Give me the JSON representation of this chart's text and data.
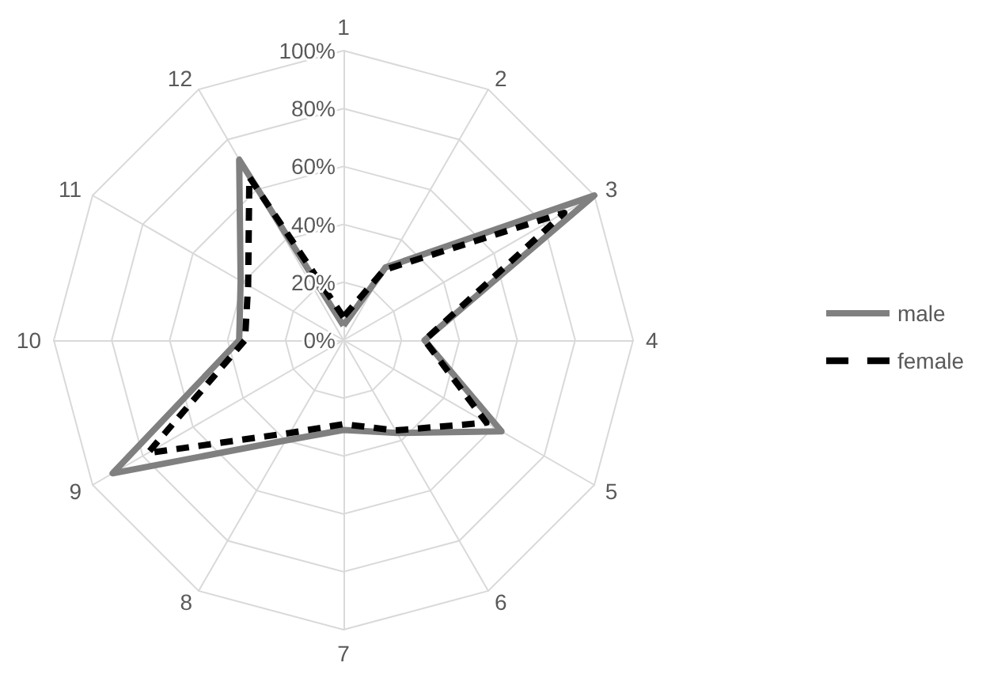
{
  "chart_data": {
    "type": "radar",
    "categories": [
      "1",
      "2",
      "3",
      "4",
      "5",
      "6",
      "7",
      "8",
      "9",
      "10",
      "11",
      "12"
    ],
    "series": [
      {
        "name": "male",
        "color": "#808080",
        "line_style": "solid",
        "values": [
          5,
          29,
          100,
          28,
          63,
          37,
          31,
          40,
          92,
          36,
          41,
          72
        ]
      },
      {
        "name": "female",
        "color": "#000000",
        "line_style": "dashed",
        "values": [
          8,
          28,
          88,
          28,
          57,
          36,
          29,
          37,
          78,
          34,
          38,
          65
        ]
      }
    ],
    "ylim": [
      0,
      100
    ],
    "yticks": [
      {
        "value": 0,
        "label": "0%"
      },
      {
        "value": 20,
        "label": "20%"
      },
      {
        "value": 40,
        "label": "40%"
      },
      {
        "value": 60,
        "label": "60%"
      },
      {
        "value": 80,
        "label": "80%"
      },
      {
        "value": 100,
        "label": "100%"
      }
    ],
    "grid": true,
    "legend": "right",
    "marker": "none"
  }
}
